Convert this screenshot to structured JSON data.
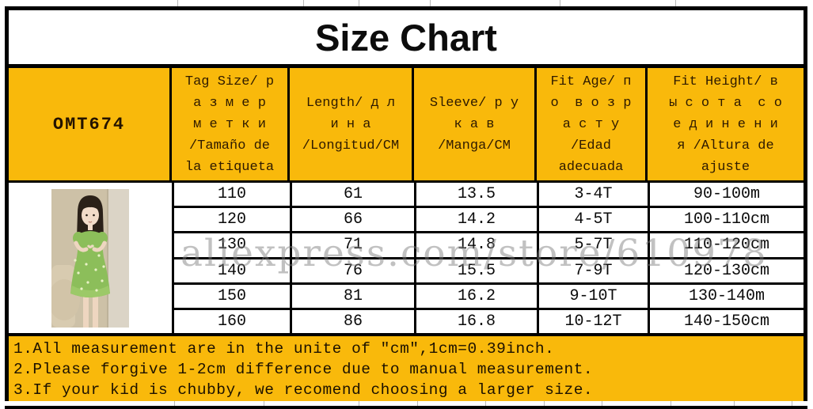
{
  "title": "Size Chart",
  "watermark": "aliexpress.com/store/610978",
  "table": {
    "columns": [
      {
        "id": "model",
        "lines": [
          "OMT674"
        ]
      },
      {
        "id": "tag-size",
        "lines": [
          "Tag Size/ р",
          "а з м е р",
          "м е т к и",
          "/Tamaño de",
          "la etiqueta"
        ]
      },
      {
        "id": "length",
        "lines": [
          "Length/ д л",
          "и н а",
          "/Longitud/CM"
        ]
      },
      {
        "id": "sleeve",
        "lines": [
          "Sleeve/ р у",
          "к а в",
          "/Manga/CM"
        ]
      },
      {
        "id": "fit-age",
        "lines": [
          "Fit Age/ п",
          "о  в о з р",
          "а с т у",
          "/Edad",
          "adecuada"
        ]
      },
      {
        "id": "fit-height",
        "lines": [
          "Fit Height/ в",
          "ы с о т а  с о",
          "е д и н е н и",
          "я /Altura de",
          "ajuste"
        ]
      }
    ],
    "rows": [
      [
        "110",
        "61",
        "13.5",
        "3-4T",
        "90-100m"
      ],
      [
        "120",
        "66",
        "14.2",
        "4-5T",
        "100-110cm"
      ],
      [
        "130",
        "71",
        "14.8",
        "5-7T",
        "110-120cm"
      ],
      [
        "140",
        "76",
        "15.5",
        "7-9T",
        "120-130cm"
      ],
      [
        "150",
        "81",
        "16.2",
        "9-10T",
        "130-140m"
      ],
      [
        "160",
        "86",
        "16.8",
        "10-12T",
        "140-150cm"
      ]
    ]
  },
  "notes": [
    "1.All measurement are in the unite of ″cm″,1cm=0.39inch.",
    "2.Please forgive 1-2cm difference due to manual measurement.",
    "3.If your kid is chubby, we recomend choosing a larger size."
  ],
  "photo": {
    "description": "Girl in green floral dress making a heart with her hands"
  },
  "colors": {
    "accent_yellow": "#f9b90b",
    "border_black": "#000000",
    "header_text": "#2e1a00",
    "watermark_gray": "#7d7d7d",
    "dress_green": "#8cbe5a"
  }
}
